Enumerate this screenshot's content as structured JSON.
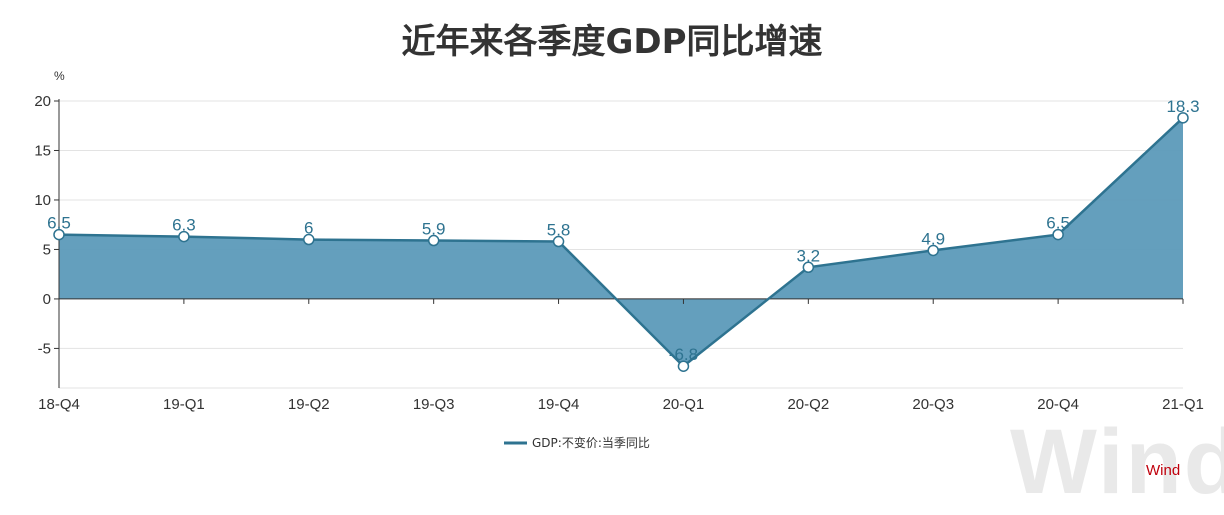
{
  "chart_data": {
    "type": "area",
    "title": "近年来各季度GDP同比增速",
    "ylabel": "%",
    "xlabel": "",
    "categories": [
      "18-Q4",
      "19-Q1",
      "19-Q2",
      "19-Q3",
      "19-Q4",
      "20-Q1",
      "20-Q2",
      "20-Q3",
      "20-Q4",
      "21-Q1"
    ],
    "series": [
      {
        "name": "GDP:不变价:当季同比",
        "values": [
          6.5,
          6.3,
          6,
          5.9,
          5.8,
          -6.8,
          3.2,
          4.9,
          6.5,
          18.3
        ]
      }
    ],
    "data_labels": [
      "6.5",
      "6.3",
      "6",
      "5.9",
      "5.8",
      "-6.8",
      "3.2",
      "4.9",
      "6.5",
      "18.3"
    ],
    "ylim": [
      -9,
      20
    ],
    "yticks": [
      20,
      15,
      10,
      5,
      0,
      -5
    ],
    "grid": true,
    "legend_position": "bottom",
    "colors": {
      "line": "#2e7390",
      "fill": "#5c9ab9",
      "label": "#2e7390"
    }
  },
  "watermark": "Wind",
  "brand": "Wind"
}
